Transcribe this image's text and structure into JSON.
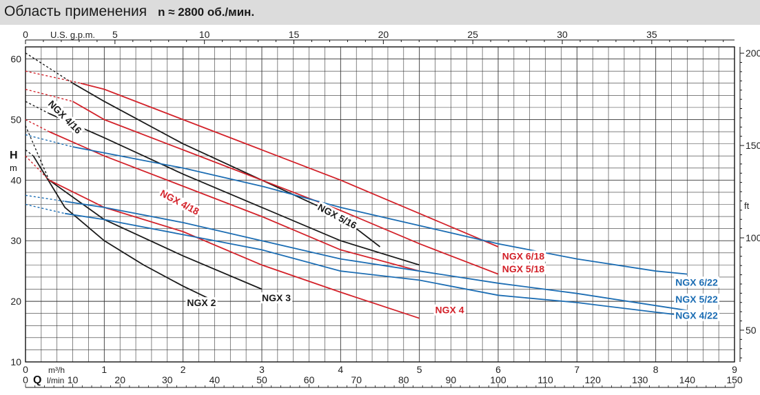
{
  "page": {
    "title": "Область применения",
    "subtitle": "n ≈ 2800 об./мин."
  },
  "chart_data": {
    "type": "line",
    "grid": true,
    "axes": {
      "left": {
        "label": "H",
        "unit": "m",
        "range": [
          10,
          62
        ],
        "ticks": [
          10,
          20,
          30,
          40,
          50,
          60
        ]
      },
      "right": {
        "label": "ft",
        "ticks": [
          50,
          100,
          150,
          200
        ]
      },
      "top": {
        "label": "U.S. g.p.m.",
        "range": [
          0,
          39.6
        ],
        "ticks": [
          0,
          5,
          10,
          15,
          20,
          25,
          30,
          35
        ]
      },
      "bottom_m3h": {
        "label": "Q",
        "unit": "m³/h",
        "range": [
          0,
          9
        ],
        "ticks": [
          0,
          1,
          2,
          3,
          4,
          5,
          6,
          7,
          8,
          9
        ]
      },
      "bottom_lmin": {
        "unit": "l/min",
        "range": [
          0,
          150
        ],
        "ticks": [
          0,
          10,
          20,
          30,
          40,
          50,
          60,
          70,
          80,
          90,
          100,
          110,
          120,
          130,
          140,
          150
        ]
      }
    },
    "series_colors": {
      "black": "#1a1a1a",
      "red": "#d3222a",
      "blue": "#1c6db3"
    },
    "series": [
      {
        "name": "NGX 2",
        "color": "black",
        "points": [
          [
            0.1,
            44
          ],
          [
            0.5,
            35.5
          ],
          [
            1.0,
            30
          ],
          [
            1.5,
            26
          ],
          [
            2.0,
            22.5
          ],
          [
            2.4,
            20
          ],
          [
            2.4,
            20
          ],
          [
            2.42,
            20
          ],
          [
            2.4,
            20
          ],
          [
            2.42,
            19.9
          ],
          [
            2.45,
            19.4
          ],
          [
            2.35,
            19.4
          ],
          [
            2.0,
            19.8
          ]
        ],
        "dashed_to": [
          0,
          45
        ]
      },
      {
        "name": "NGX 3",
        "color": "black",
        "points": [
          [
            0.3,
            40
          ],
          [
            1.0,
            33.5
          ],
          [
            2.0,
            27.5
          ],
          [
            3.0,
            22
          ]
        ],
        "dashed_to": [
          0,
          49
        ]
      },
      {
        "name": "NGX 4",
        "color": "red",
        "points": [
          [
            0.3,
            40
          ],
          [
            1.0,
            35.5
          ],
          [
            2.0,
            31.5
          ],
          [
            3.0,
            26
          ],
          [
            4.0,
            21.5
          ],
          [
            5.0,
            17.2
          ]
        ],
        "dashed_to": [
          0,
          44
        ]
      },
      {
        "name": "NGX 4/16",
        "color": "black",
        "points": [
          [
            0.3,
            51
          ],
          [
            1.0,
            47
          ],
          [
            2.0,
            41
          ],
          [
            3.0,
            35.5
          ],
          [
            4.0,
            30
          ],
          [
            5.0,
            26
          ]
        ],
        "dashed_to": [
          0,
          53
        ]
      },
      {
        "name": "NGX 4/18",
        "color": "red",
        "points": [
          [
            0.3,
            48
          ],
          [
            1.0,
            44
          ],
          [
            2.0,
            39
          ],
          [
            3.0,
            34
          ],
          [
            4.0,
            28.5
          ],
          [
            5.0,
            25
          ]
        ],
        "dashed_to": [
          0,
          50
        ]
      },
      {
        "name": "NGX 5/16",
        "color": "black",
        "points": [
          [
            0.6,
            56
          ],
          [
            1.0,
            53
          ],
          [
            2.0,
            46
          ],
          [
            3.0,
            40
          ],
          [
            4.0,
            34
          ],
          [
            4.5,
            29
          ]
        ],
        "dashed_to": [
          0,
          61
        ]
      },
      {
        "name": "NGX 5/18",
        "color": "red",
        "points": [
          [
            0.6,
            53
          ],
          [
            1.0,
            50
          ],
          [
            2.0,
            45
          ],
          [
            3.0,
            40
          ],
          [
            4.0,
            35
          ],
          [
            5.0,
            29.5
          ],
          [
            6.0,
            24.5
          ]
        ],
        "dashed_to": [
          0,
          55
        ]
      },
      {
        "name": "NGX 6/18",
        "color": "red",
        "points": [
          [
            0.7,
            56
          ],
          [
            1.0,
            55
          ],
          [
            2.0,
            50
          ],
          [
            3.0,
            45
          ],
          [
            4.0,
            40
          ],
          [
            5.0,
            34.5
          ],
          [
            6.0,
            29
          ]
        ],
        "dashed_to": [
          0,
          58
        ]
      },
      {
        "name": "NGX 4/22",
        "color": "blue",
        "points": [
          [
            0.5,
            34.5
          ],
          [
            1.0,
            33.5
          ],
          [
            2.0,
            31
          ],
          [
            3.0,
            28.5
          ],
          [
            4.0,
            25
          ],
          [
            5.0,
            23.5
          ],
          [
            6.0,
            21
          ],
          [
            7.0,
            19.8
          ],
          [
            8.0,
            18.2
          ],
          [
            8.4,
            17.6
          ]
        ],
        "dashed_to": [
          0,
          36
        ]
      },
      {
        "name": "NGX 5/22",
        "color": "blue",
        "points": [
          [
            0.5,
            36.5
          ],
          [
            1.0,
            35.5
          ],
          [
            2.0,
            33
          ],
          [
            3.0,
            30
          ],
          [
            4.0,
            27
          ],
          [
            5.0,
            25
          ],
          [
            6.0,
            23
          ],
          [
            7.0,
            21.3
          ],
          [
            8.0,
            19.3
          ],
          [
            8.4,
            18.5
          ]
        ],
        "dashed_to": [
          0,
          37.5
        ]
      },
      {
        "name": "NGX 6/22",
        "color": "blue",
        "points": [
          [
            0.6,
            45.5
          ],
          [
            1.0,
            44.5
          ],
          [
            2.0,
            42
          ],
          [
            3.0,
            39
          ],
          [
            4.0,
            35.5
          ],
          [
            5.0,
            32.5
          ],
          [
            6.0,
            29.5
          ],
          [
            7.0,
            27
          ],
          [
            8.0,
            25
          ],
          [
            8.4,
            24.5
          ]
        ],
        "dashed_to": [
          0,
          47.5
        ]
      }
    ],
    "labels": [
      {
        "text": "NGX 2",
        "color": "black",
        "at": [
          2.05,
          19.2
        ]
      },
      {
        "text": "NGX 3",
        "color": "black",
        "at": [
          3.0,
          20.0
        ]
      },
      {
        "text": "NGX 4",
        "color": "red",
        "at": [
          5.2,
          18.0
        ]
      },
      {
        "text": "NGX 4/16",
        "color": "black",
        "at": [
          0.28,
          52.5
        ],
        "rotate": 45
      },
      {
        "text": "NGX 4/18",
        "color": "red",
        "at": [
          1.7,
          37.5
        ],
        "rotate": 28
      },
      {
        "text": "NGX 5/16",
        "color": "black",
        "at": [
          3.7,
          35.2
        ],
        "rotate": 28
      },
      {
        "text": "NGX 5/18",
        "color": "red",
        "at": [
          6.05,
          24.8
        ]
      },
      {
        "text": "NGX 6/18",
        "color": "red",
        "at": [
          6.05,
          26.9
        ]
      },
      {
        "text": "NGX 4/22",
        "color": "blue",
        "at": [
          8.25,
          17.1
        ]
      },
      {
        "text": "NGX 5/22",
        "color": "blue",
        "at": [
          8.25,
          19.8
        ]
      },
      {
        "text": "NGX 6/22",
        "color": "blue",
        "at": [
          8.25,
          22.6
        ]
      }
    ]
  }
}
